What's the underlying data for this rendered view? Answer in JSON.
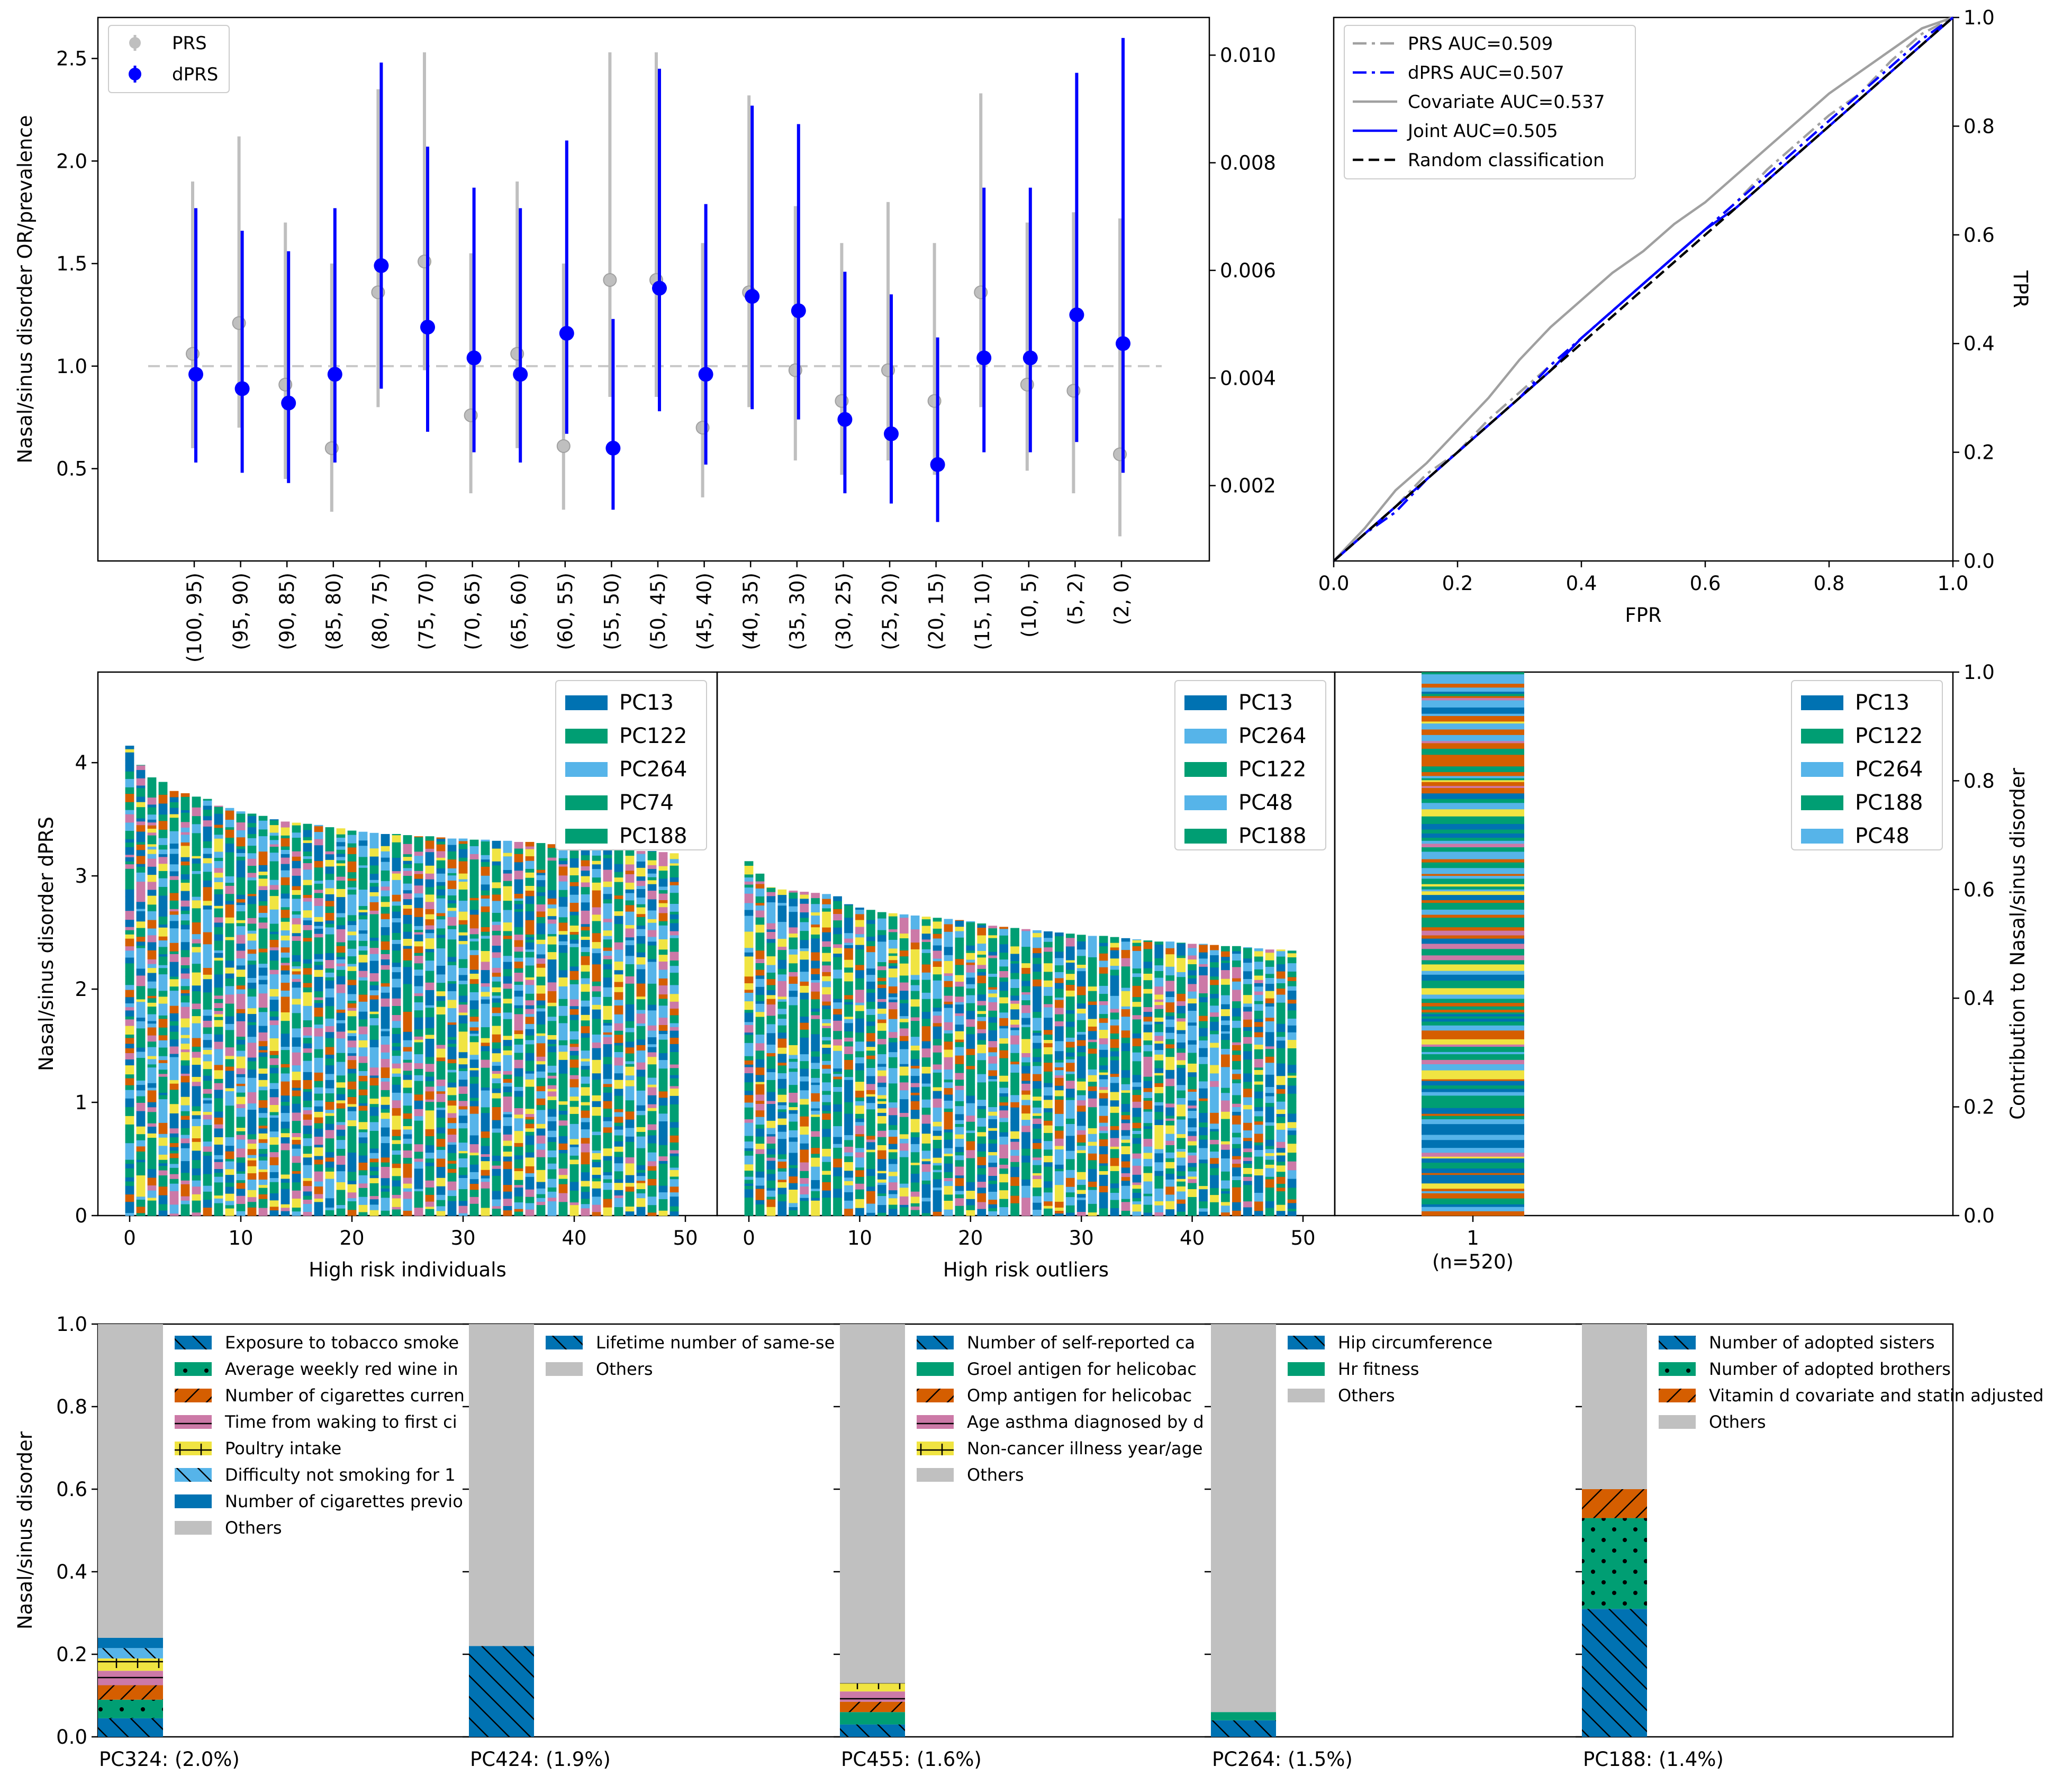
{
  "colors": {
    "prs": "#bfbfbf",
    "dprs": "#0000ff",
    "palette": [
      "#0072b2",
      "#009e73",
      "#56b4e9",
      "#f0e442",
      "#cc79a7",
      "#d55e00",
      "#009e73",
      "#0072b2"
    ],
    "others": "#c0c0c0",
    "covariate": "#a0a0a0"
  },
  "chart_data": [
    {
      "type": "scatter",
      "id": "or-plot",
      "title": "",
      "xlabel": "",
      "ylabel": "Nasal/sinus disorder OR/prevalence",
      "ylim": [
        0.05,
        2.7
      ],
      "y2lim": [
        0.0006,
        0.0107
      ],
      "yticks": [
        "0.5",
        "1.0",
        "1.5",
        "2.0",
        "2.5"
      ],
      "y2ticks": [
        "0.002",
        "0.004",
        "0.006",
        "0.008",
        "0.010"
      ],
      "categories": [
        "(100, 95)",
        "(95, 90)",
        "(90, 85)",
        "(85, 80)",
        "(80, 75)",
        "(75, 70)",
        "(70, 65)",
        "(65, 60)",
        "(60, 55)",
        "(55, 50)",
        "(50, 45)",
        "(45, 40)",
        "(40, 35)",
        "(35, 30)",
        "(30, 25)",
        "(25, 20)",
        "(20, 15)",
        "(15, 10)",
        "(10, 5)",
        "(5, 2)",
        "(2, 0)"
      ],
      "legend": [
        "PRS",
        "dPRS"
      ],
      "legend_position": "upper-left",
      "series": [
        {
          "name": "PRS",
          "values": [
            1.06,
            1.21,
            0.91,
            0.6,
            1.36,
            1.51,
            0.76,
            1.06,
            0.61,
            1.42,
            1.42,
            0.7,
            1.36,
            0.98,
            0.83,
            0.98,
            0.83,
            1.36,
            0.91,
            0.88,
            0.57
          ],
          "lower": [
            0.6,
            0.7,
            0.45,
            0.29,
            0.8,
            0.98,
            0.38,
            0.6,
            0.3,
            0.85,
            0.85,
            0.36,
            0.8,
            0.54,
            0.47,
            0.54,
            0.47,
            0.8,
            0.49,
            0.38,
            0.17
          ],
          "upper": [
            1.9,
            2.12,
            1.7,
            1.5,
            2.35,
            2.53,
            1.55,
            1.9,
            1.5,
            2.53,
            2.53,
            1.6,
            2.32,
            1.78,
            1.6,
            1.8,
            1.6,
            2.33,
            1.7,
            1.75,
            1.72
          ]
        },
        {
          "name": "dPRS",
          "values": [
            0.96,
            0.89,
            0.82,
            0.96,
            1.49,
            1.19,
            1.04,
            0.96,
            1.16,
            0.6,
            1.38,
            0.96,
            1.34,
            1.27,
            0.74,
            0.67,
            0.52,
            1.04,
            1.04,
            1.25,
            1.11
          ],
          "lower": [
            0.53,
            0.48,
            0.43,
            0.53,
            0.89,
            0.68,
            0.58,
            0.53,
            0.67,
            0.3,
            0.78,
            0.52,
            0.79,
            0.74,
            0.38,
            0.33,
            0.24,
            0.58,
            0.58,
            0.63,
            0.48
          ],
          "upper": [
            1.77,
            1.66,
            1.56,
            1.77,
            2.48,
            2.07,
            1.87,
            1.77,
            2.1,
            1.23,
            2.45,
            1.79,
            2.27,
            2.18,
            1.46,
            1.35,
            1.14,
            1.87,
            1.87,
            2.43,
            2.6
          ]
        }
      ],
      "reference_line": 1.0
    },
    {
      "type": "line",
      "id": "roc-plot",
      "title": "",
      "xlabel": "FPR",
      "ylabel": "TPR",
      "xlim": [
        0,
        1
      ],
      "ylim": [
        0,
        1
      ],
      "xticks": [
        "0.0",
        "0.2",
        "0.4",
        "0.6",
        "0.8",
        "1.0"
      ],
      "yticks": [
        "0.0",
        "0.2",
        "0.4",
        "0.6",
        "0.8",
        "1.0"
      ],
      "legend_position": "upper-left",
      "series": [
        {
          "name": "PRS AUC=0.509",
          "style": "dashdot",
          "color": "#a0a0a0",
          "x": [
            0,
            0.05,
            0.1,
            0.15,
            0.2,
            0.25,
            0.3,
            0.35,
            0.4,
            0.45,
            0.5,
            0.55,
            0.6,
            0.65,
            0.7,
            0.75,
            0.8,
            0.85,
            0.9,
            0.95,
            1.0
          ],
          "y": [
            0,
            0.05,
            0.1,
            0.16,
            0.2,
            0.26,
            0.31,
            0.36,
            0.41,
            0.46,
            0.51,
            0.56,
            0.61,
            0.66,
            0.72,
            0.77,
            0.82,
            0.86,
            0.92,
            0.97,
            1.0
          ]
        },
        {
          "name": "dPRS AUC=0.507",
          "style": "dashdot",
          "color": "#0000ff",
          "x": [
            0,
            0.05,
            0.1,
            0.15,
            0.2,
            0.25,
            0.3,
            0.35,
            0.4,
            0.45,
            0.5,
            0.55,
            0.6,
            0.65,
            0.7,
            0.75,
            0.8,
            0.85,
            0.9,
            0.95,
            1.0
          ],
          "y": [
            0,
            0.05,
            0.09,
            0.15,
            0.2,
            0.25,
            0.3,
            0.36,
            0.41,
            0.46,
            0.51,
            0.56,
            0.61,
            0.66,
            0.71,
            0.76,
            0.81,
            0.86,
            0.91,
            0.96,
            1.0
          ]
        },
        {
          "name": "Covariate AUC=0.537",
          "style": "solid",
          "color": "#a0a0a0",
          "x": [
            0,
            0.05,
            0.1,
            0.15,
            0.2,
            0.25,
            0.3,
            0.35,
            0.4,
            0.45,
            0.5,
            0.55,
            0.6,
            0.65,
            0.7,
            0.75,
            0.8,
            0.85,
            0.9,
            0.95,
            1.0
          ],
          "y": [
            0,
            0.06,
            0.13,
            0.18,
            0.24,
            0.3,
            0.37,
            0.43,
            0.48,
            0.53,
            0.57,
            0.62,
            0.66,
            0.71,
            0.76,
            0.81,
            0.86,
            0.9,
            0.94,
            0.98,
            1.0
          ]
        },
        {
          "name": "Joint AUC=0.505",
          "style": "solid",
          "color": "#0000ff",
          "x": [
            0,
            0.05,
            0.1,
            0.15,
            0.2,
            0.25,
            0.3,
            0.35,
            0.4,
            0.45,
            0.5,
            0.55,
            0.6,
            0.65,
            0.7,
            0.75,
            0.8,
            0.85,
            0.9,
            0.95,
            1.0
          ],
          "y": [
            0,
            0.05,
            0.1,
            0.15,
            0.2,
            0.25,
            0.3,
            0.35,
            0.41,
            0.46,
            0.51,
            0.56,
            0.61,
            0.65,
            0.7,
            0.75,
            0.8,
            0.85,
            0.9,
            0.95,
            1.0
          ]
        },
        {
          "name": "Random classification",
          "style": "dashed",
          "color": "#000000",
          "x": [
            0,
            1
          ],
          "y": [
            0,
            1
          ]
        }
      ]
    },
    {
      "type": "bar",
      "id": "high-risk-individuals",
      "stacked": true,
      "xlabel": "High risk individuals",
      "ylabel": "Nasal/sinus disorder dPRS",
      "ylim": [
        0,
        4.8
      ],
      "yticks": [
        "0",
        "1",
        "2",
        "3",
        "4"
      ],
      "xticks": [
        "0",
        "10",
        "20",
        "30",
        "40",
        "50"
      ],
      "legend": [
        "PC13",
        "PC122",
        "PC264",
        "PC74",
        "PC188"
      ],
      "legend_position": "upper-right",
      "totals": [
        4.15,
        3.98,
        3.87,
        3.83,
        3.75,
        3.73,
        3.7,
        3.68,
        3.62,
        3.6,
        3.57,
        3.55,
        3.53,
        3.5,
        3.48,
        3.47,
        3.46,
        3.45,
        3.43,
        3.42,
        3.4,
        3.39,
        3.38,
        3.37,
        3.37,
        3.36,
        3.35,
        3.35,
        3.34,
        3.33,
        3.33,
        3.32,
        3.32,
        3.31,
        3.31,
        3.3,
        3.3,
        3.29,
        3.28,
        3.28,
        3.27,
        3.26,
        3.25,
        3.25,
        3.24,
        3.23,
        3.22,
        3.22,
        3.21,
        3.2
      ]
    },
    {
      "type": "bar",
      "id": "high-risk-outliers",
      "stacked": true,
      "xlabel": "High risk outliers",
      "ylabel": "",
      "ylim": [
        0,
        4.8
      ],
      "xticks": [
        "0",
        "10",
        "20",
        "30",
        "40",
        "50"
      ],
      "legend": [
        "PC13",
        "PC264",
        "PC122",
        "PC48",
        "PC188"
      ],
      "legend_position": "upper-right",
      "totals": [
        3.13,
        3.02,
        2.9,
        2.88,
        2.87,
        2.86,
        2.85,
        2.84,
        2.82,
        2.75,
        2.72,
        2.7,
        2.68,
        2.67,
        2.66,
        2.65,
        2.64,
        2.63,
        2.62,
        2.61,
        2.6,
        2.58,
        2.56,
        2.55,
        2.54,
        2.53,
        2.52,
        2.51,
        2.5,
        2.49,
        2.48,
        2.47,
        2.47,
        2.46,
        2.45,
        2.44,
        2.43,
        2.42,
        2.42,
        2.41,
        2.4,
        2.4,
        2.39,
        2.38,
        2.38,
        2.37,
        2.36,
        2.35,
        2.35,
        2.34
      ]
    },
    {
      "type": "bar",
      "id": "cluster-contribution",
      "stacked": true,
      "xlabel": "",
      "ylabel": "Contribution to Nasal/sinus disorder",
      "ylim": [
        0,
        1
      ],
      "yticks": [
        "0.0",
        "0.2",
        "0.4",
        "0.6",
        "0.8",
        "1.0"
      ],
      "categories": [
        "1"
      ],
      "category_sublabels": [
        "(n=520)"
      ],
      "values": [
        1.0
      ],
      "legend": [
        "PC13",
        "PC122",
        "PC264",
        "PC188",
        "PC48"
      ],
      "legend_position": "upper-right"
    },
    {
      "type": "bar",
      "id": "pc-breakdown",
      "stacked": true,
      "ylabel": "Nasal/sinus disorder",
      "ylim": [
        0,
        1
      ],
      "yticks": [
        "0.0",
        "0.2",
        "0.4",
        "0.6",
        "0.8",
        "1.0"
      ],
      "panels": [
        {
          "label": "PC324: (2.0%)",
          "segments": [
            {
              "name": "Exposure to tobacco smoke",
              "value": 0.045,
              "color": "#0072b2",
              "hatch": "backslash"
            },
            {
              "name": "Average weekly red wine in",
              "value": 0.045,
              "color": "#009e73",
              "hatch": "dots"
            },
            {
              "name": "Number of cigarettes curren",
              "value": 0.035,
              "color": "#d55e00",
              "hatch": "slash"
            },
            {
              "name": "Time from waking to first ci",
              "value": 0.035,
              "color": "#cc79a7",
              "hatch": "hline"
            },
            {
              "name": "Poultry intake",
              "value": 0.03,
              "color": "#f0e442",
              "hatch": "plus"
            },
            {
              "name": "Difficulty not smoking for 1",
              "value": 0.025,
              "color": "#56b4e9",
              "hatch": "backslash"
            },
            {
              "name": "Number of cigarettes previo",
              "value": 0.025,
              "color": "#0072b2",
              "hatch": "none"
            },
            {
              "name": "Others",
              "value": 0.76,
              "color": "#c0c0c0",
              "hatch": "none"
            }
          ]
        },
        {
          "label": "PC424: (1.9%)",
          "segments": [
            {
              "name": "Lifetime number of same-se",
              "value": 0.22,
              "color": "#0072b2",
              "hatch": "backslash"
            },
            {
              "name": "Others",
              "value": 0.78,
              "color": "#c0c0c0",
              "hatch": "none"
            }
          ]
        },
        {
          "label": "PC455: (1.6%)",
          "segments": [
            {
              "name": "Number of self-reported ca",
              "value": 0.03,
              "color": "#0072b2",
              "hatch": "backslash"
            },
            {
              "name": "Groel antigen for helicobac",
              "value": 0.03,
              "color": "#009e73",
              "hatch": "none"
            },
            {
              "name": "Omp antigen for helicobac",
              "value": 0.025,
              "color": "#d55e00",
              "hatch": "slash"
            },
            {
              "name": "Age asthma diagnosed by d",
              "value": 0.025,
              "color": "#cc79a7",
              "hatch": "hline"
            },
            {
              "name": "Non-cancer illness year/age",
              "value": 0.02,
              "color": "#f0e442",
              "hatch": "plus"
            },
            {
              "name": "Others",
              "value": 0.87,
              "color": "#c0c0c0",
              "hatch": "none"
            }
          ]
        },
        {
          "label": "PC264: (1.5%)",
          "segments": [
            {
              "name": "Hip circumference",
              "value": 0.04,
              "color": "#0072b2",
              "hatch": "backslash"
            },
            {
              "name": "Hr fitness",
              "value": 0.02,
              "color": "#009e73",
              "hatch": "none"
            },
            {
              "name": "Others",
              "value": 0.94,
              "color": "#c0c0c0",
              "hatch": "none"
            }
          ]
        },
        {
          "label": "PC188: (1.4%)",
          "segments": [
            {
              "name": "Number of adopted sisters",
              "value": 0.31,
              "color": "#0072b2",
              "hatch": "backslash"
            },
            {
              "name": "Number of adopted brothers",
              "value": 0.22,
              "color": "#009e73",
              "hatch": "dots"
            },
            {
              "name": "Vitamin d covariate and statin adjusted",
              "value": 0.07,
              "color": "#d55e00",
              "hatch": "slash"
            },
            {
              "name": "Others",
              "value": 0.4,
              "color": "#c0c0c0",
              "hatch": "none"
            }
          ]
        }
      ]
    }
  ]
}
